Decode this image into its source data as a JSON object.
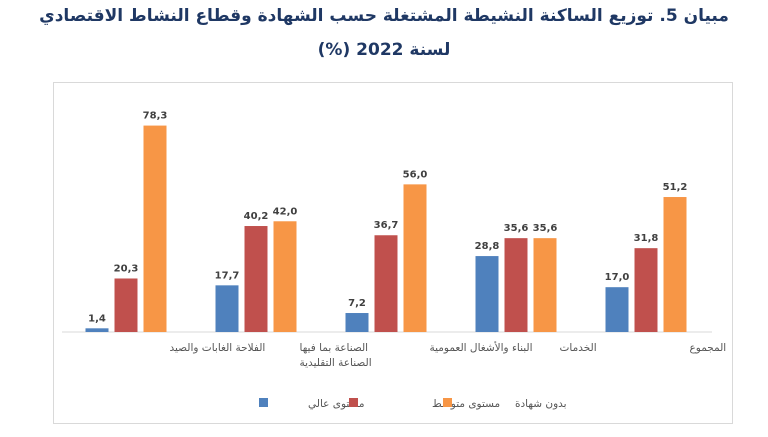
{
  "header": {
    "line1": "مبيان 5. توزيع الساكنة النشيطة المشتغلة حسب الشهادة وقطاع النشاط الاقتصادي",
    "line2": "لسنة 2022 (%)"
  },
  "chart_data": {
    "type": "bar",
    "title": "مبيان 5. توزيع الساكنة النشيطة المشتغلة حسب الشهادة وقطاع النشاط الاقتصادي لسنة 2022 (%)",
    "categories": [
      [
        "الفلاحة الغابات والصيد"
      ],
      [
        "الصناعة بما فيها",
        "الصناعة التقليدية"
      ],
      [
        "البناء والأشغال العمومية"
      ],
      [
        "الخدمات"
      ],
      [
        "المجموع"
      ]
    ],
    "series": [
      {
        "name": "مستوى عالي",
        "color": "#4f81bd",
        "values": [
          1.4,
          17.7,
          7.2,
          28.8,
          17.0
        ],
        "labels": [
          "1,4",
          "17,7",
          "7,2",
          "28,8",
          "17,0"
        ]
      },
      {
        "name": "مستوى متوسط",
        "color": "#c0504d",
        "values": [
          20.3,
          40.2,
          36.7,
          35.6,
          31.8
        ],
        "labels": [
          "20,3",
          "40,2",
          "36,7",
          "35,6",
          "31,8"
        ]
      },
      {
        "name": "بدون شهادة",
        "color": "#f79646",
        "values": [
          78.3,
          42.0,
          56.0,
          35.6,
          51.2
        ],
        "labels": [
          "78,3",
          "42,0",
          "56,0",
          "35,6",
          "51,2"
        ]
      }
    ],
    "ylim": [
      0,
      80
    ],
    "grid": false,
    "legend": "bottom"
  }
}
